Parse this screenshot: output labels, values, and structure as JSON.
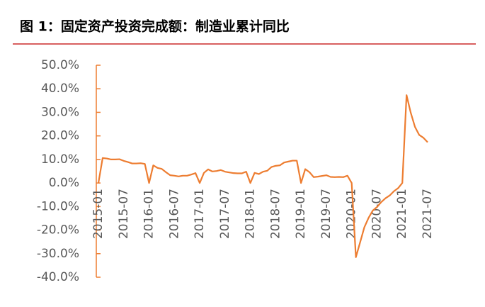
{
  "chart_data": {
    "type": "line",
    "title": "图 1：固定资产投资完成额：制造业累计同比",
    "categories": [
      "2015-01",
      null,
      null,
      null,
      null,
      null,
      "2015-07",
      null,
      null,
      null,
      null,
      null,
      "2016-01",
      null,
      null,
      null,
      null,
      null,
      "2016-07",
      null,
      null,
      null,
      null,
      null,
      "2017-01",
      null,
      null,
      null,
      null,
      null,
      "2017-07",
      null,
      null,
      null,
      null,
      null,
      "2018-01",
      null,
      null,
      null,
      null,
      null,
      "2018-07",
      null,
      null,
      null,
      null,
      null,
      "2019-01",
      null,
      null,
      null,
      null,
      null,
      "2019-07",
      null,
      null,
      null,
      null,
      null,
      "2020-01",
      null,
      null,
      null,
      null,
      null,
      "2020-07",
      null,
      null,
      null,
      null,
      null,
      "2021-01",
      null,
      null,
      null,
      null,
      null,
      "2021-07"
    ],
    "series": [
      {
        "color": "#ed7d31",
        "values": [
          0,
          10.6,
          10.4,
          10.0,
          10.0,
          10.1,
          9.4,
          8.9,
          8.3,
          8.3,
          8.4,
          8.1,
          0,
          7.5,
          6.4,
          6.0,
          4.6,
          3.3,
          3.1,
          2.8,
          3.1,
          3.1,
          3.6,
          4.2,
          0,
          4.3,
          5.8,
          4.9,
          5.1,
          5.5,
          4.8,
          4.5,
          4.2,
          4.1,
          4.1,
          4.8,
          0,
          4.3,
          3.8,
          4.8,
          5.2,
          6.8,
          7.3,
          7.5,
          8.7,
          9.1,
          9.5,
          9.5,
          0,
          5.9,
          4.6,
          2.5,
          2.7,
          3.0,
          3.3,
          2.6,
          2.5,
          2.6,
          2.5,
          3.1,
          0,
          -31.5,
          -25.2,
          -18.8,
          -14.8,
          -11.7,
          -10.2,
          -8.1,
          -6.5,
          -5.3,
          -3.5,
          -2.2,
          0,
          37.3,
          29.8,
          23.8,
          20.4,
          19.2,
          17.3
        ]
      }
    ],
    "ylim": [
      -40,
      50
    ],
    "yticks": [
      {
        "value": -40,
        "label": "-40.0%"
      },
      {
        "value": -30,
        "label": "-30.0%"
      },
      {
        "value": -20,
        "label": "-20.0%"
      },
      {
        "value": -10,
        "label": "-10.0%"
      },
      {
        "value": 0,
        "label": "0.0%"
      },
      {
        "value": 10,
        "label": "10.0%"
      },
      {
        "value": 20,
        "label": "20.0%"
      },
      {
        "value": 30,
        "label": "30.0%"
      },
      {
        "value": 40,
        "label": "40.0%"
      },
      {
        "value": 50,
        "label": "50.0%"
      }
    ],
    "axis_color": "#ed7d31"
  }
}
